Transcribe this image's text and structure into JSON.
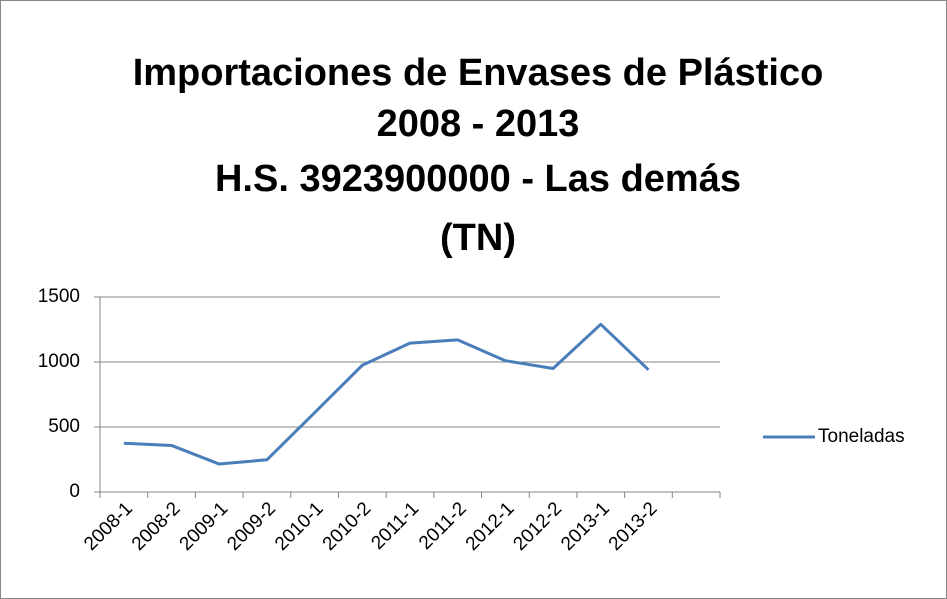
{
  "chart_data": {
    "type": "line",
    "title": [
      "Importaciones de Envases de Plástico",
      "2008 - 2013",
      "H.S. 3923900000 - Las demás",
      "(TN)"
    ],
    "categories": [
      "2008-1",
      "2008-2",
      "2009-1",
      "2009-2",
      "2010-1",
      "2010-2",
      "2011-1",
      "2011-2",
      "2012-1",
      "2012-2",
      "2013-1",
      "2013-2",
      null
    ],
    "series": [
      {
        "name": "Toneladas",
        "color": "#4a7ebb",
        "values": [
          375,
          358,
          215,
          248,
          610,
          975,
          1145,
          1170,
          1010,
          950,
          1290,
          940,
          null
        ]
      }
    ],
    "ylim": [
      0,
      1500
    ],
    "yticks": [
      0,
      500,
      1000,
      1500
    ],
    "grid": true,
    "legend": "right"
  }
}
